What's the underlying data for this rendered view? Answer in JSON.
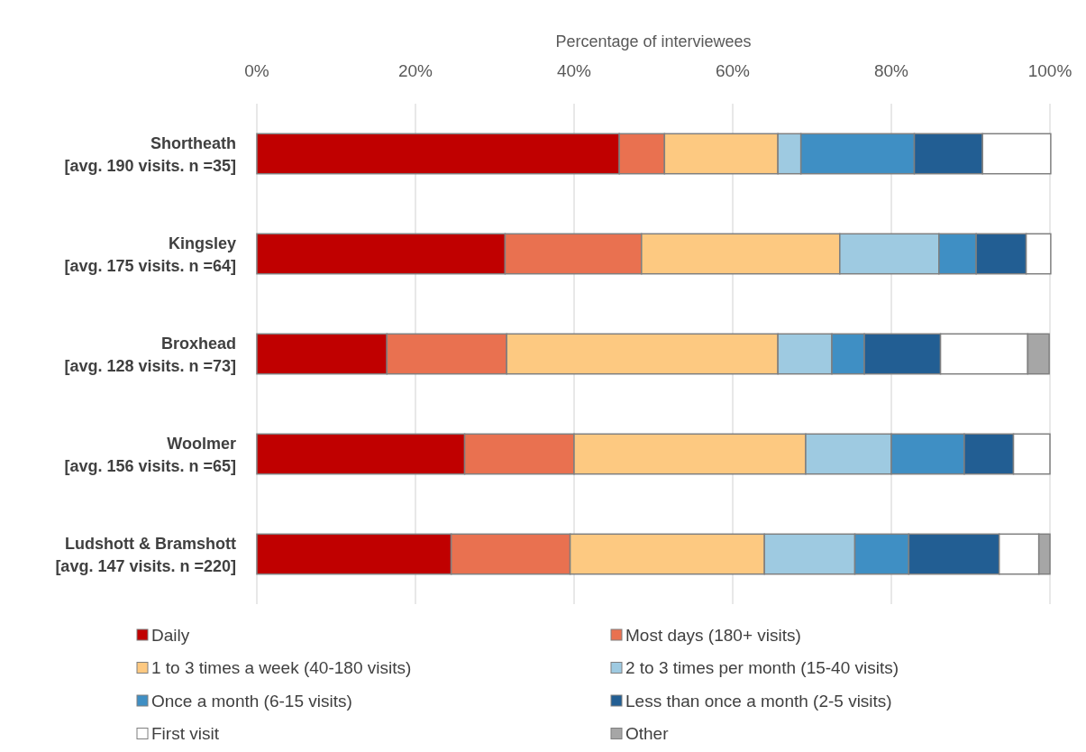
{
  "chart_data": {
    "type": "bar",
    "orientation": "horizontal",
    "stacked": true,
    "xlabel": "Percentage of interviewees",
    "categories": [
      "Shortheath\n[avg. 190 visits. n =35]",
      "Kingsley\n[avg. 175 visits. n =64]",
      "Broxhead\n[avg. 128 visits. n =73]",
      "Woolmer\n[avg. 156 visits. n =65]",
      "Ludshott & Bramshott\n[avg. 147 visits. n =220]"
    ],
    "series": [
      {
        "name": "Daily",
        "color": "#c00000",
        "values": [
          45.7,
          31.3,
          16.4,
          26.2,
          24.5
        ]
      },
      {
        "name": "Most days (180+ visits)",
        "color": "#e97150",
        "values": [
          5.7,
          17.2,
          15.1,
          13.8,
          15.0
        ]
      },
      {
        "name": "1 to 3 times a week (40-180 visits)",
        "color": "#fdc981",
        "values": [
          14.3,
          25.0,
          34.2,
          29.2,
          24.5
        ]
      },
      {
        "name": "2 to 3 times per month (15-40 visits)",
        "color": "#9ecae1",
        "values": [
          2.9,
          12.5,
          6.8,
          10.8,
          11.4
        ]
      },
      {
        "name": "Once a month (6-15 visits)",
        "color": "#3f8fc4",
        "values": [
          14.3,
          4.7,
          4.1,
          9.2,
          6.8
        ]
      },
      {
        "name": "Less than once a month (2-5 visits)",
        "color": "#225e93",
        "values": [
          8.6,
          6.3,
          9.6,
          6.2,
          11.4
        ]
      },
      {
        "name": "First visit",
        "color": "#ffffff",
        "values": [
          8.6,
          3.1,
          11.0,
          4.6,
          5.0
        ]
      },
      {
        "name": "Other",
        "color": "#a6a6a6",
        "values": [
          null,
          null,
          2.7,
          null,
          1.4
        ]
      }
    ],
    "xlim": [
      0,
      100
    ],
    "xticks": [
      {
        "value": 0,
        "label": "0%"
      },
      {
        "value": 20,
        "label": "20%"
      },
      {
        "value": 40,
        "label": "40%"
      },
      {
        "value": 60,
        "label": "60%"
      },
      {
        "value": 80,
        "label": "80%"
      },
      {
        "value": 100,
        "label": "100%"
      }
    ],
    "grid": "x",
    "legend": "bottom"
  }
}
